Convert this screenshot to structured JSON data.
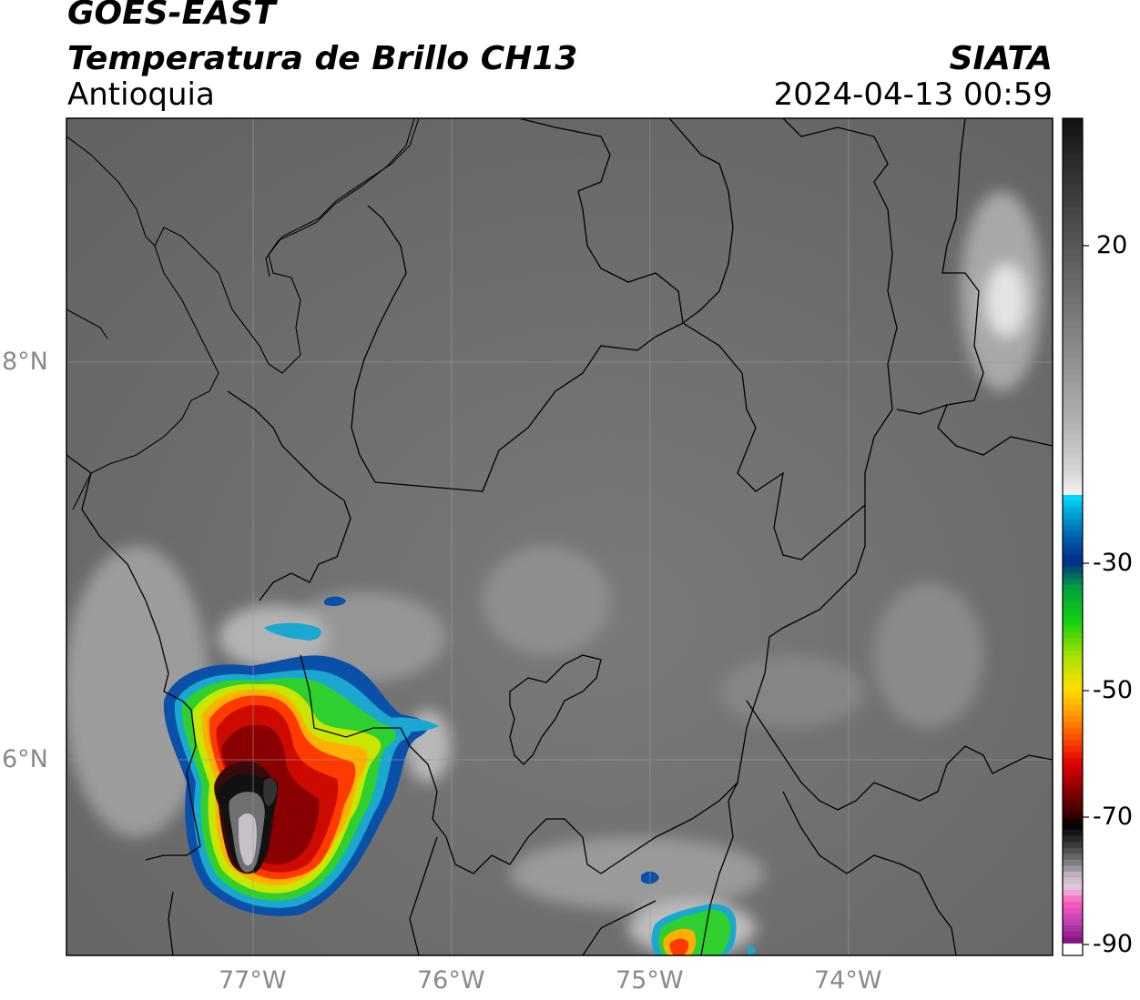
{
  "header": {
    "satellite": "GOES-EAST",
    "product": "Temperatura de Brillo CH13",
    "region": "Antioquia",
    "agency": "SIATA",
    "timestamp": "2024-04-13 00:59"
  },
  "axes": {
    "lat_labels": [
      "8°N",
      "6°N"
    ],
    "lon_labels": [
      "77°W",
      "76°W",
      "75°W",
      "74°W"
    ]
  },
  "colorbar": {
    "tick_labels": [
      "20",
      "-30",
      "-50",
      "-70",
      "-90"
    ],
    "unit_range_c": [
      -92,
      40
    ]
  },
  "colors": {
    "background_gray": "#6e6e6e",
    "border_line": "#000000",
    "cold_core": "#b0a8b0"
  }
}
